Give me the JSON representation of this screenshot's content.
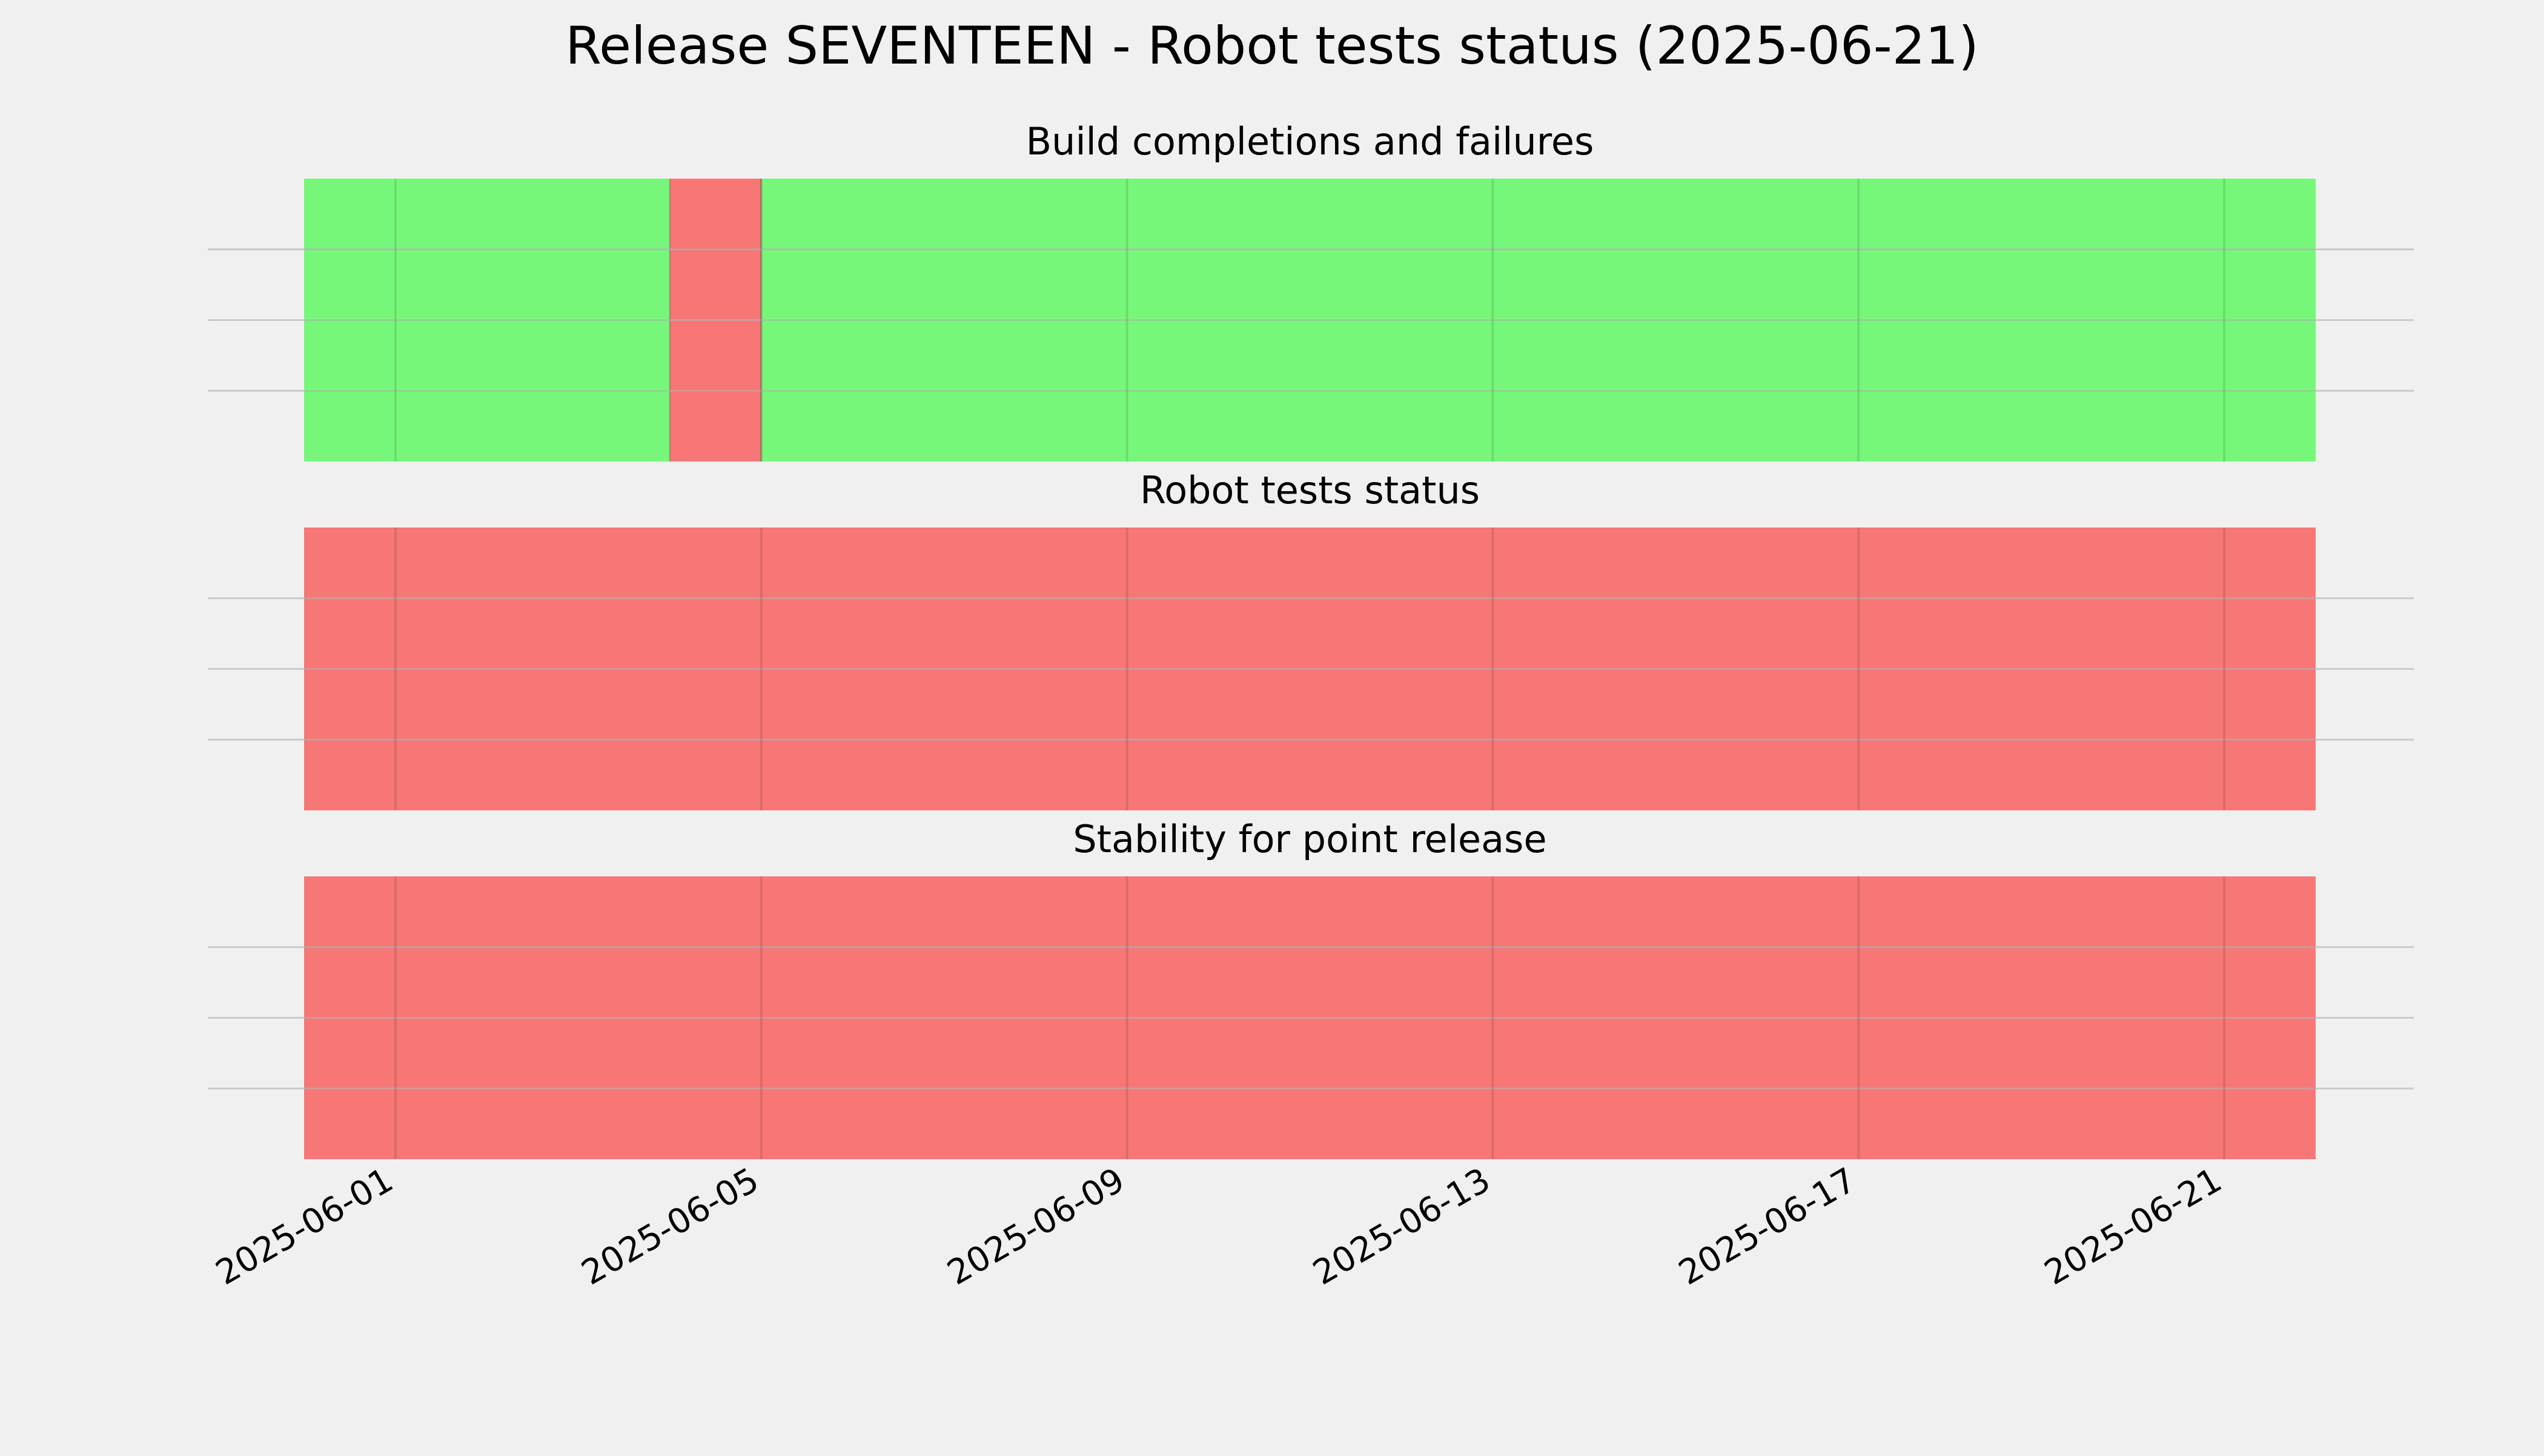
{
  "chart_data": {
    "type": "timeline",
    "title": "Release SEVENTEEN - Robot tests status (2025-06-21)",
    "x_range": [
      "2025-05-31",
      "2025-06-22"
    ],
    "x_ticks": [
      "2025-06-01",
      "2025-06-05",
      "2025-06-09",
      "2025-06-13",
      "2025-06-17",
      "2025-06-21"
    ],
    "grid": true,
    "status_colors": {
      "success": "#77f77a",
      "failure": "#f77777"
    },
    "panels": [
      {
        "title": "Build completions and failures",
        "segments": [
          {
            "start": "2025-05-31",
            "end": "2025-06-04",
            "status": "success"
          },
          {
            "start": "2025-06-04",
            "end": "2025-06-05",
            "status": "failure"
          },
          {
            "start": "2025-06-05",
            "end": "2025-06-22",
            "status": "success"
          }
        ]
      },
      {
        "title": "Robot tests status",
        "segments": [
          {
            "start": "2025-05-31",
            "end": "2025-06-22",
            "status": "failure"
          }
        ]
      },
      {
        "title": "Stability for point release",
        "segments": [
          {
            "start": "2025-05-31",
            "end": "2025-06-22",
            "status": "failure"
          }
        ]
      }
    ]
  }
}
